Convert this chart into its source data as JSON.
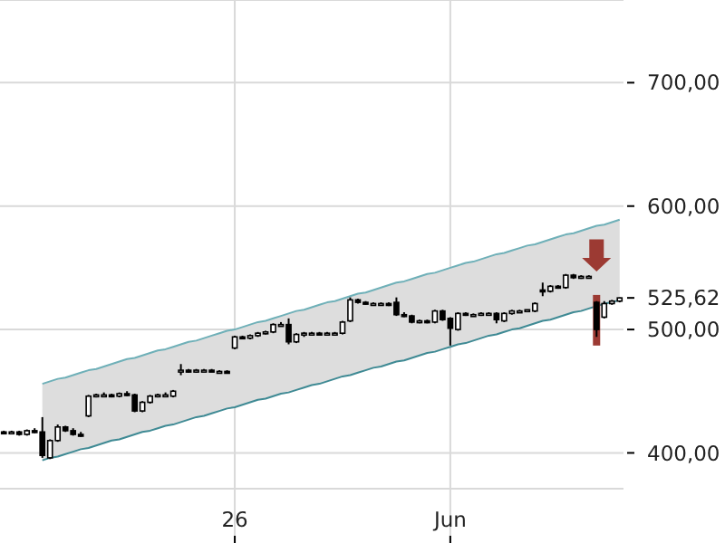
{
  "chart_data": {
    "type": "candlestick",
    "categories": [
      null,
      null,
      null,
      null,
      null,
      null,
      null,
      null,
      null,
      null,
      null,
      null,
      null,
      null,
      null,
      null,
      null,
      null,
      null,
      null,
      null,
      null,
      null,
      null,
      null,
      null,
      null,
      null,
      null,
      null,
      "26",
      null,
      null,
      null,
      null,
      null,
      null,
      null,
      null,
      null,
      null,
      null,
      null,
      null,
      null,
      null,
      null,
      null,
      null,
      null,
      null,
      null,
      null,
      null,
      null,
      null,
      null,
      null,
      "Jun",
      null,
      null,
      null,
      null,
      null,
      null,
      null,
      null,
      null,
      null,
      null,
      null,
      null,
      null,
      null,
      null,
      null,
      null,
      null,
      null,
      null,
      null
    ],
    "ohlc": [
      [
        417,
        418,
        415,
        416
      ],
      [
        416,
        418,
        415,
        417
      ],
      [
        417,
        418,
        414,
        415
      ],
      [
        415,
        419,
        414,
        418
      ],
      [
        418,
        420,
        416,
        417
      ],
      [
        417,
        429,
        396,
        398
      ],
      [
        396,
        411,
        395,
        410
      ],
      [
        410,
        423,
        409,
        421
      ],
      [
        421,
        422,
        417,
        418
      ],
      [
        418,
        420,
        414,
        415
      ],
      [
        415,
        417,
        413,
        414
      ],
      [
        430,
        447,
        429,
        446
      ],
      [
        446,
        448,
        445,
        447
      ],
      [
        447,
        449,
        446,
        447
      ],
      [
        447,
        448,
        445,
        446
      ],
      [
        446,
        449,
        445,
        448
      ],
      [
        448,
        450,
        446,
        447
      ],
      [
        447,
        448,
        433,
        434
      ],
      [
        434,
        442,
        433,
        441
      ],
      [
        441,
        447,
        440,
        446
      ],
      [
        446,
        448,
        445,
        447
      ],
      [
        447,
        449,
        446,
        447
      ],
      [
        446,
        451,
        445,
        450
      ],
      [
        466,
        472,
        463,
        467
      ],
      [
        467,
        468,
        465,
        466
      ],
      [
        466,
        468,
        465,
        467
      ],
      [
        467,
        468,
        466,
        467
      ],
      [
        467,
        468,
        466,
        466
      ],
      [
        466,
        467,
        465,
        466
      ],
      [
        466,
        467,
        465,
        465
      ],
      [
        485,
        495,
        484,
        494
      ],
      [
        494,
        495,
        492,
        493
      ],
      [
        493,
        496,
        492,
        495
      ],
      [
        495,
        498,
        494,
        497
      ],
      [
        497,
        499,
        496,
        498
      ],
      [
        498,
        505,
        497,
        504
      ],
      [
        504,
        506,
        503,
        504
      ],
      [
        504,
        509,
        488,
        490
      ],
      [
        490,
        497,
        489,
        496
      ],
      [
        496,
        498,
        494,
        497
      ],
      [
        497,
        498,
        496,
        497
      ],
      [
        497,
        498,
        496,
        496
      ],
      [
        496,
        498,
        495,
        497
      ],
      [
        497,
        498,
        496,
        497
      ],
      [
        497,
        507,
        496,
        506
      ],
      [
        507,
        526,
        506,
        524
      ],
      [
        524,
        525,
        521,
        522
      ],
      [
        522,
        523,
        520,
        521
      ],
      [
        521,
        522,
        520,
        521
      ],
      [
        521,
        522,
        520,
        521
      ],
      [
        521,
        522,
        519,
        520
      ],
      [
        522,
        526,
        511,
        512
      ],
      [
        512,
        514,
        510,
        511
      ],
      [
        511,
        512,
        505,
        506
      ],
      [
        506,
        508,
        505,
        507
      ],
      [
        507,
        508,
        505,
        506
      ],
      [
        506,
        516,
        505,
        515
      ],
      [
        515,
        516,
        507,
        508
      ],
      [
        509,
        510,
        487,
        501
      ],
      [
        500,
        514,
        499,
        513
      ],
      [
        513,
        514,
        511,
        512
      ],
      [
        512,
        513,
        511,
        512
      ],
      [
        512,
        514,
        511,
        513
      ],
      [
        513,
        514,
        512,
        513
      ],
      [
        513,
        514,
        505,
        508
      ],
      [
        507,
        514,
        506,
        513
      ],
      [
        513,
        516,
        512,
        515
      ],
      [
        515,
        516,
        514,
        515
      ],
      [
        515,
        516,
        514,
        516
      ],
      [
        515,
        522,
        514,
        521
      ],
      [
        532,
        538,
        527,
        531
      ],
      [
        531,
        536,
        530,
        535
      ],
      [
        535,
        536,
        533,
        534
      ],
      [
        534,
        545,
        533,
        544
      ],
      [
        544,
        545,
        541,
        542
      ],
      [
        543,
        544,
        541,
        543
      ],
      [
        543,
        544,
        542,
        543
      ],
      [
        522,
        523,
        494,
        500
      ],
      [
        510,
        523,
        509,
        521
      ],
      [
        521,
        524,
        520,
        523
      ],
      [
        523,
        526,
        522,
        525.62
      ]
    ],
    "color": "#000000",
    "series": [
      {
        "type": "line",
        "values": [
          null,
          null,
          null,
          null,
          null,
          456,
          458,
          460,
          461,
          463,
          465,
          467,
          468,
          470,
          472,
          474,
          476,
          477,
          479,
          481,
          483,
          484,
          486,
          488,
          490,
          491,
          493,
          495,
          497,
          499,
          500,
          502,
          504,
          506,
          507,
          509,
          511,
          513,
          515,
          516,
          518,
          520,
          522,
          523,
          525,
          527,
          529,
          530,
          532,
          534,
          536,
          538,
          539,
          541,
          543,
          545,
          546,
          548,
          550,
          552,
          554,
          555,
          557,
          559,
          561,
          562,
          564,
          566,
          568,
          569,
          571,
          573,
          575,
          577,
          578,
          580,
          582,
          584,
          585,
          587,
          589
        ],
        "color": "#6fb0b8",
        "lower": [
          null,
          null,
          null,
          null,
          null,
          394,
          396,
          397,
          399,
          401,
          403,
          404,
          406,
          408,
          410,
          411,
          413,
          415,
          417,
          418,
          420,
          422,
          423,
          425,
          427,
          429,
          430,
          432,
          434,
          436,
          437,
          439,
          441,
          443,
          444,
          446,
          448,
          449,
          451,
          453,
          455,
          456,
          458,
          460,
          462,
          463,
          465,
          467,
          469,
          470,
          472,
          474,
          475,
          477,
          479,
          481,
          482,
          484,
          486,
          488,
          489,
          491,
          493,
          495,
          496,
          498,
          500,
          501,
          503,
          505,
          507,
          508,
          510,
          512,
          514,
          515,
          517,
          519,
          521,
          522,
          524
        ],
        "upper": [
          null,
          null,
          null,
          null,
          null,
          456,
          458,
          460,
          461,
          463,
          465,
          467,
          468,
          470,
          472,
          474,
          476,
          477,
          479,
          481,
          483,
          484,
          486,
          488,
          490,
          491,
          493,
          495,
          497,
          499,
          500,
          502,
          504,
          506,
          507,
          509,
          511,
          513,
          515,
          516,
          518,
          520,
          522,
          523,
          525,
          527,
          529,
          530,
          532,
          534,
          536,
          538,
          539,
          541,
          543,
          545,
          546,
          548,
          550,
          552,
          554,
          555,
          557,
          559,
          561,
          562,
          564,
          566,
          568,
          569,
          571,
          573,
          575,
          577,
          578,
          580,
          582,
          584,
          585,
          587,
          589
        ]
      },
      {
        "type": "line",
        "values": [
          null,
          null,
          null,
          null,
          null,
          394,
          396,
          397,
          399,
          401,
          403,
          404,
          406,
          408,
          410,
          411,
          413,
          415,
          417,
          418,
          420,
          422,
          423,
          425,
          427,
          429,
          430,
          432,
          434,
          436,
          437,
          439,
          441,
          443,
          444,
          446,
          448,
          449,
          451,
          453,
          455,
          456,
          458,
          460,
          462,
          463,
          465,
          467,
          469,
          470,
          472,
          474,
          475,
          477,
          479,
          481,
          482,
          484,
          486,
          488,
          489,
          491,
          493,
          495,
          496,
          498,
          500,
          501,
          503,
          505,
          507,
          508,
          510,
          512,
          514,
          515,
          517,
          519,
          521,
          522,
          524
        ],
        "color": "#3f8a94"
      }
    ],
    "ylim": [
      371,
      767
    ],
    "yticks": [
      {
        "value": 400,
        "label": "400,00"
      },
      {
        "value": 500,
        "label": "500,00"
      },
      {
        "value": 525.62,
        "label": "525,62"
      },
      {
        "value": 600,
        "label": "600,00"
      },
      {
        "value": 700,
        "label": "700,00"
      }
    ],
    "grid": true,
    "line_style": "solid"
  }
}
